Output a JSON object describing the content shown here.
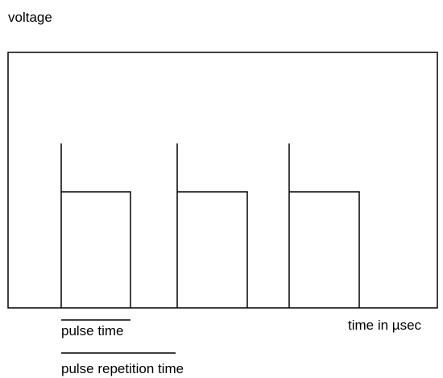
{
  "labels": {
    "y_axis": "voltage",
    "x_axis": "time in µsec",
    "pulse_time": "pulse time",
    "pulse_repetition_time": "pulse repetition time"
  }
}
